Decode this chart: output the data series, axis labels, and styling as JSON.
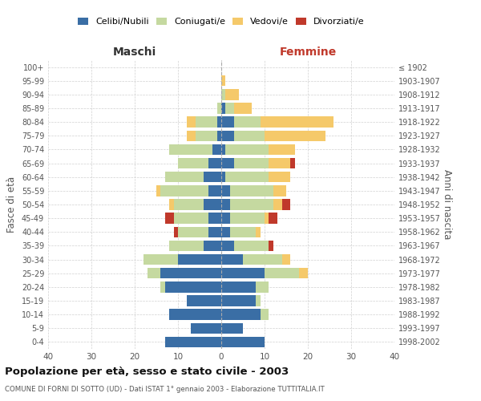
{
  "age_groups": [
    "0-4",
    "5-9",
    "10-14",
    "15-19",
    "20-24",
    "25-29",
    "30-34",
    "35-39",
    "40-44",
    "45-49",
    "50-54",
    "55-59",
    "60-64",
    "65-69",
    "70-74",
    "75-79",
    "80-84",
    "85-89",
    "90-94",
    "95-99",
    "100+"
  ],
  "birth_years": [
    "1998-2002",
    "1993-1997",
    "1988-1992",
    "1983-1987",
    "1978-1982",
    "1973-1977",
    "1968-1972",
    "1963-1967",
    "1958-1962",
    "1953-1957",
    "1948-1952",
    "1943-1947",
    "1938-1942",
    "1933-1937",
    "1928-1932",
    "1923-1927",
    "1918-1922",
    "1913-1917",
    "1908-1912",
    "1903-1907",
    "≤ 1902"
  ],
  "males": {
    "celibi": [
      13,
      7,
      12,
      8,
      13,
      14,
      10,
      4,
      3,
      3,
      4,
      3,
      4,
      3,
      2,
      1,
      1,
      0,
      0,
      0,
      0
    ],
    "coniugati": [
      0,
      0,
      0,
      0,
      1,
      3,
      8,
      8,
      7,
      8,
      7,
      11,
      9,
      7,
      10,
      5,
      5,
      1,
      0,
      0,
      0
    ],
    "vedovi": [
      0,
      0,
      0,
      0,
      0,
      0,
      0,
      0,
      0,
      0,
      1,
      1,
      0,
      0,
      0,
      2,
      2,
      0,
      0,
      0,
      0
    ],
    "divorziati": [
      0,
      0,
      0,
      0,
      0,
      0,
      0,
      0,
      1,
      2,
      0,
      0,
      0,
      0,
      0,
      0,
      0,
      0,
      0,
      0,
      0
    ]
  },
  "females": {
    "nubili": [
      10,
      5,
      9,
      8,
      8,
      10,
      5,
      3,
      2,
      2,
      2,
      2,
      1,
      3,
      1,
      3,
      3,
      1,
      0,
      0,
      0
    ],
    "coniugate": [
      0,
      0,
      2,
      1,
      3,
      8,
      9,
      8,
      6,
      8,
      10,
      10,
      10,
      8,
      10,
      7,
      6,
      2,
      1,
      0,
      0
    ],
    "vedove": [
      0,
      0,
      0,
      0,
      0,
      2,
      2,
      0,
      1,
      1,
      2,
      3,
      5,
      5,
      6,
      14,
      17,
      4,
      3,
      1,
      0
    ],
    "divorziate": [
      0,
      0,
      0,
      0,
      0,
      0,
      0,
      1,
      0,
      2,
      2,
      0,
      0,
      1,
      0,
      0,
      0,
      0,
      0,
      0,
      0
    ]
  },
  "colors": {
    "celibi_nubili": "#3a6ea5",
    "coniugati": "#c5d9a0",
    "vedovi": "#f5c96a",
    "divorziati": "#c0392b"
  },
  "title": "Popolazione per età, sesso e stato civile - 2003",
  "subtitle": "COMUNE DI FORNI DI SOTTO (UD) - Dati ISTAT 1° gennaio 2003 - Elaborazione TUTTITALIA.IT",
  "xlabel_left": "Maschi",
  "xlabel_right": "Femmine",
  "ylabel_left": "Fasce di età",
  "ylabel_right": "Anni di nascita",
  "xlim": 40,
  "legend_labels": [
    "Celibi/Nubili",
    "Coniugati/e",
    "Vedovi/e",
    "Divorziati/e"
  ],
  "background_color": "#ffffff",
  "grid_color": "#cccccc"
}
